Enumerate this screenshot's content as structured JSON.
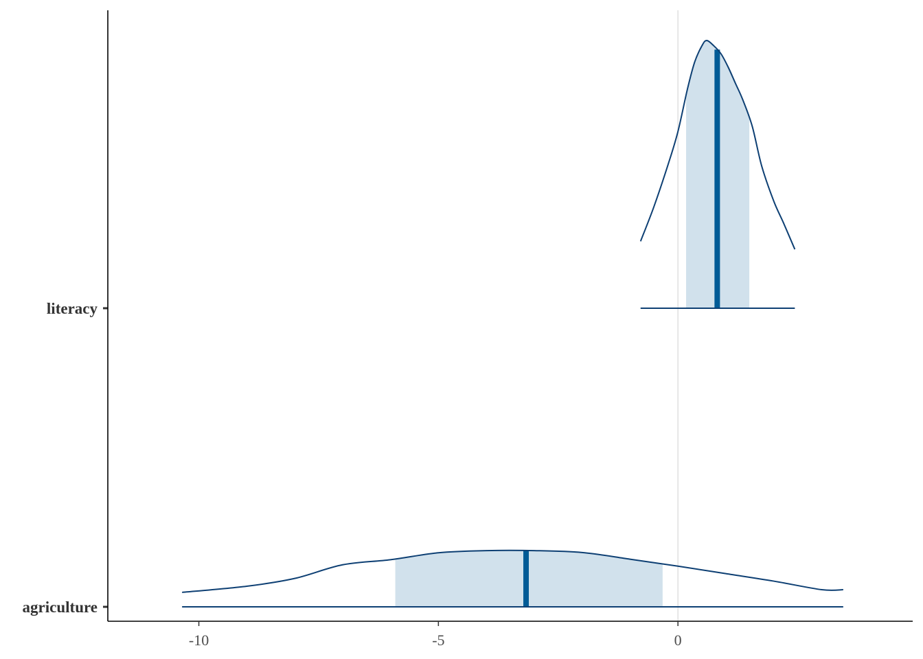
{
  "chart_data": {
    "type": "density-ridges",
    "title": "",
    "xlabel": "",
    "ylabel": "",
    "xlim": [
      -11.9,
      4.9
    ],
    "x_ticks": [
      -10,
      -5,
      0
    ],
    "x_tick_labels": [
      "-10",
      "-5",
      "0"
    ],
    "reference_line_x": 0,
    "grid": false,
    "legend": "none",
    "colors": {
      "outline": "#0d3f73",
      "interval_fill": "#d1e1ec",
      "median_line": "#005b96",
      "reference_line": "#e0e0e0",
      "axis": "#000000"
    },
    "parameters": [
      {
        "name": "literacy",
        "outer_interval": [
          -0.78,
          2.44
        ],
        "inner_interval": [
          0.17,
          1.49
        ],
        "median": 0.82,
        "density": [
          [
            -0.78,
            0.25
          ],
          [
            -0.5,
            0.38
          ],
          [
            -0.2,
            0.54
          ],
          [
            0.0,
            0.66
          ],
          [
            0.2,
            0.82
          ],
          [
            0.35,
            0.92
          ],
          [
            0.5,
            0.98
          ],
          [
            0.6,
            1.0
          ],
          [
            0.75,
            0.98
          ],
          [
            0.9,
            0.95
          ],
          [
            1.05,
            0.9
          ],
          [
            1.2,
            0.84
          ],
          [
            1.35,
            0.78
          ],
          [
            1.55,
            0.68
          ],
          [
            1.75,
            0.53
          ],
          [
            2.0,
            0.4
          ],
          [
            2.2,
            0.32
          ],
          [
            2.44,
            0.22
          ]
        ]
      },
      {
        "name": "agriculture",
        "outer_interval": [
          -10.35,
          3.45
        ],
        "inner_interval": [
          -5.9,
          -0.32
        ],
        "median": -3.17,
        "density": [
          [
            -10.35,
            0.054
          ],
          [
            -9.0,
            0.077
          ],
          [
            -8.0,
            0.106
          ],
          [
            -7.0,
            0.157
          ],
          [
            -6.0,
            0.176
          ],
          [
            -5.0,
            0.202
          ],
          [
            -4.0,
            0.21
          ],
          [
            -3.0,
            0.21
          ],
          [
            -2.0,
            0.203
          ],
          [
            -1.0,
            0.178
          ],
          [
            0.0,
            0.152
          ],
          [
            1.0,
            0.124
          ],
          [
            2.0,
            0.096
          ],
          [
            3.0,
            0.064
          ],
          [
            3.45,
            0.064
          ]
        ]
      }
    ]
  }
}
